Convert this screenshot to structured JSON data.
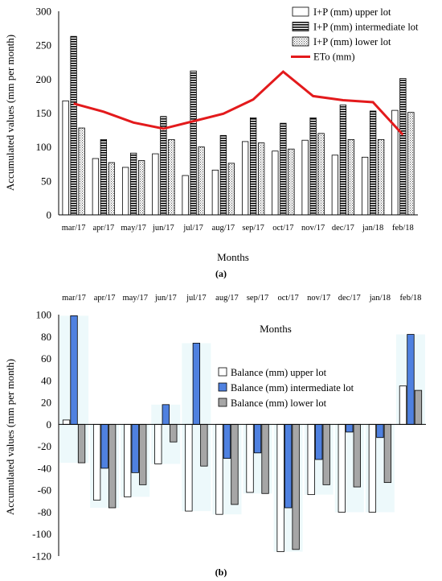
{
  "chart_data": [
    {
      "id": "a",
      "type": "bar",
      "panel_label": "(a)",
      "xlabel": "Months",
      "ylabel": "Accumulated values  (mm per month)",
      "ylim": [
        0,
        300
      ],
      "yticks": [
        0,
        50,
        100,
        150,
        200,
        250,
        300
      ],
      "categories": [
        "mar/17",
        "apr/17",
        "may/17",
        "jun/17",
        "jul/17",
        "aug/17",
        "sep/17",
        "oct/17",
        "nov/17",
        "dec/17",
        "jan/18",
        "feb/18"
      ],
      "legend_position": "top-right",
      "series": [
        {
          "name": "I+P (mm) upper lot",
          "kind": "bar",
          "pattern": "empty",
          "values": [
            168,
            83,
            70,
            90,
            58,
            66,
            108,
            94,
            110,
            88,
            85,
            154
          ]
        },
        {
          "name": "I+P (mm) intermediate lot",
          "kind": "bar",
          "pattern": "horizontal-stripes",
          "values": [
            263,
            111,
            91,
            145,
            212,
            117,
            143,
            135,
            143,
            162,
            153,
            201
          ]
        },
        {
          "name": "I+P (mm) lower lot",
          "kind": "bar",
          "pattern": "dotted",
          "values": [
            128,
            77,
            80,
            111,
            100,
            76,
            106,
            97,
            120,
            111,
            111,
            151
          ]
        },
        {
          "name": "ETo (mm)",
          "kind": "line",
          "color": "#e31a1c",
          "values": [
            164,
            152,
            136,
            127,
            138,
            149,
            170,
            211,
            175,
            169,
            166,
            118
          ]
        }
      ]
    },
    {
      "id": "b",
      "type": "bar",
      "panel_label": "(b)",
      "xlabel": "Months",
      "ylabel": "Accumulated values  (mm per month)",
      "ylim": [
        -120,
        100
      ],
      "yticks": [
        -120,
        -100,
        -80,
        -60,
        -40,
        -20,
        0,
        20,
        40,
        60,
        80,
        100
      ],
      "categories": [
        "mar/17",
        "apr/17",
        "may/17",
        "jun/17",
        "jul/17",
        "aug/17",
        "sep/17",
        "oct/17",
        "nov/17",
        "dec/17",
        "jan/18",
        "feb/18"
      ],
      "legend_position": "center-right",
      "series": [
        {
          "name": "Balance (mm) upper lot",
          "color": "#ffffff",
          "values": [
            4,
            -69,
            -66,
            -36,
            -79,
            -82,
            -62,
            -116,
            -64,
            -80,
            -80,
            35
          ]
        },
        {
          "name": "Balance (mm) intermediate lot",
          "color": "#4f81e0",
          "values": [
            99,
            -40,
            -44,
            18,
            74,
            -31,
            -26,
            -76,
            -32,
            -7,
            -12,
            82
          ]
        },
        {
          "name": "Balance (mm) lower lot",
          "color": "#a6a6a6",
          "values": [
            -35,
            -76,
            -55,
            -16,
            -38,
            -73,
            -63,
            -114,
            -55,
            -57,
            -53,
            31
          ]
        }
      ]
    }
  ]
}
